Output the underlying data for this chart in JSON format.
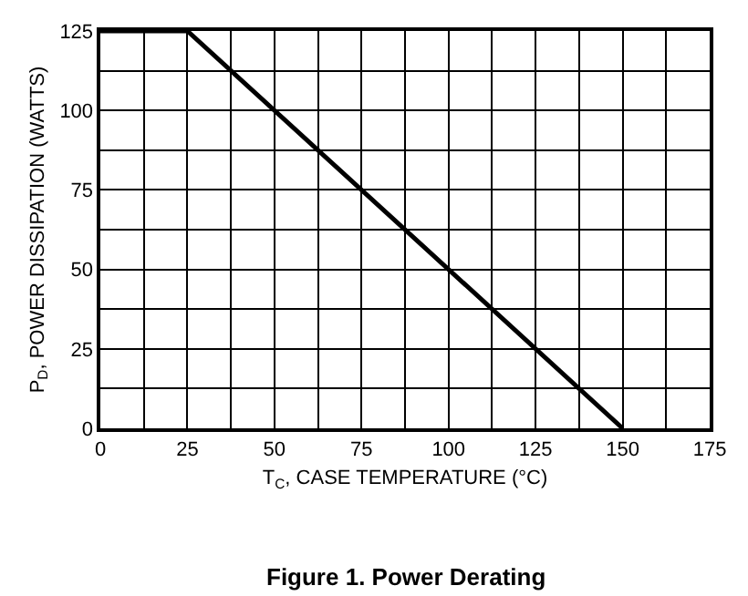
{
  "chart_data": {
    "type": "line",
    "title": "Figure 1. Power Derating",
    "xlabel": "T$_{C}$, CASE TEMPERATURE (°C)",
    "ylabel": "P$_{D}$, POWER DISSIPATION (WATTS)",
    "x": [
      0,
      25,
      150
    ],
    "series": [
      {
        "color": "#000000",
        "values": [
          125,
          125,
          0
        ]
      }
    ],
    "xlim": [
      0,
      175
    ],
    "ylim": [
      0,
      125
    ],
    "xticks": [
      0,
      {
        "value": 12.5,
        "label": null
      },
      25,
      {
        "value": 37.5,
        "label": null
      },
      50,
      {
        "value": 62.5,
        "label": null
      },
      75,
      {
        "value": 87.5,
        "label": null
      },
      100,
      {
        "value": 112.5,
        "label": null
      },
      125,
      {
        "value": 137.5,
        "label": null
      },
      150,
      {
        "value": 162.5,
        "label": null
      },
      175
    ],
    "yticks": [
      0,
      {
        "value": 12.5,
        "label": null
      },
      25,
      {
        "value": 37.5,
        "label": null
      },
      50,
      {
        "value": 62.5,
        "label": null
      },
      75,
      {
        "value": 87.5,
        "label": null
      },
      100,
      {
        "value": 112.5,
        "label": null
      },
      125
    ],
    "grid": true,
    "marker": "none",
    "line_style": "solid"
  }
}
